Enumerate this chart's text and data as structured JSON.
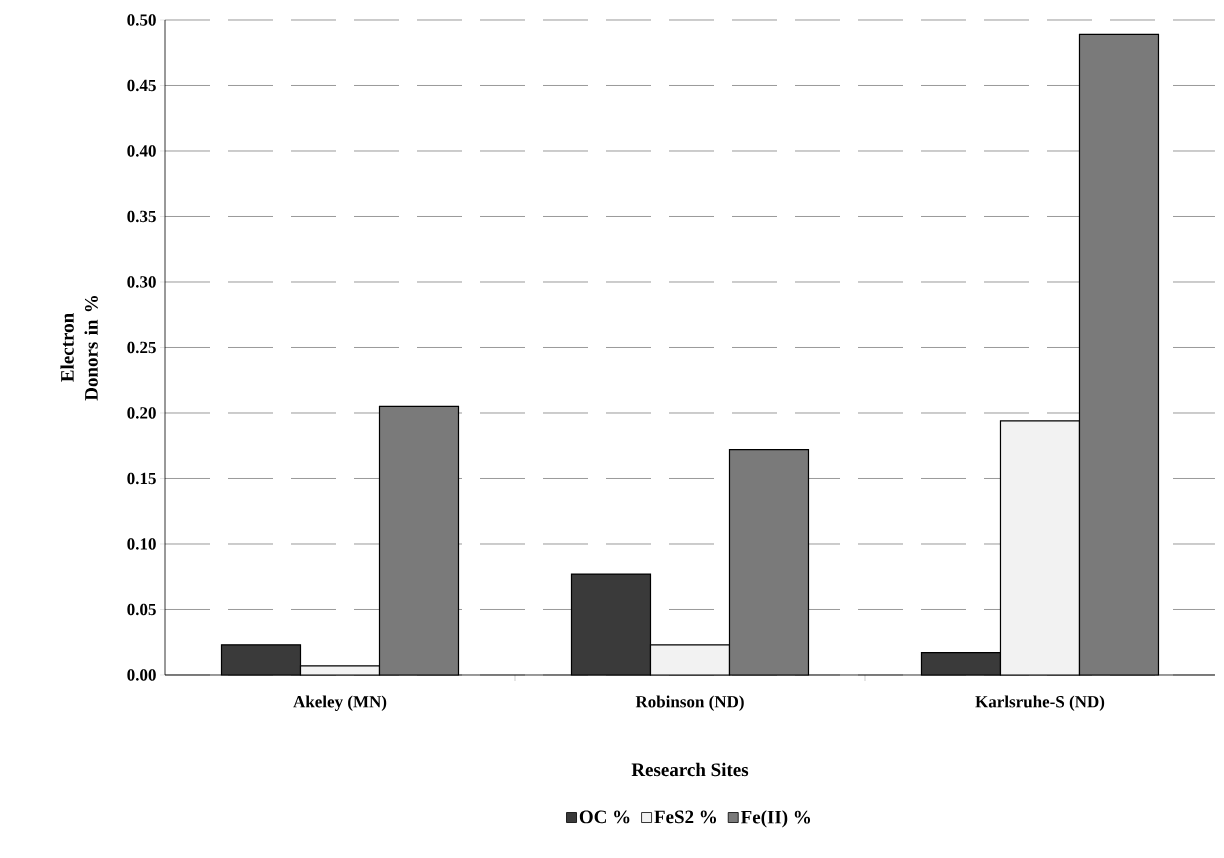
{
  "chart_data": {
    "type": "bar",
    "xlabel": "Research Sites",
    "ylabel": "Electron Donors in %",
    "categories": [
      "Akeley (MN)",
      "Robinson (ND)",
      "Karlsruhe-S (ND)"
    ],
    "series": [
      {
        "name": "OC %",
        "color": "#3a3a3a",
        "values": [
          0.023,
          0.077,
          0.017
        ]
      },
      {
        "name": "FeS2 %",
        "color": "#f2f2f2",
        "values": [
          0.007,
          0.023,
          0.194
        ]
      },
      {
        "name": "Fe(II) %",
        "color": "#7a7a7a",
        "values": [
          0.205,
          0.172,
          0.489
        ]
      }
    ],
    "ylim": [
      0,
      0.5
    ],
    "yticks": [
      {
        "value": 0,
        "label": "0.00"
      },
      {
        "value": 0.05,
        "label": "0.05"
      },
      {
        "value": 0.1,
        "label": "0.10"
      },
      {
        "value": 0.15,
        "label": "0.15"
      },
      {
        "value": 0.2,
        "label": "0.20"
      },
      {
        "value": 0.25,
        "label": "0.25"
      },
      {
        "value": 0.3,
        "label": "0.30"
      },
      {
        "value": 0.35,
        "label": "0.35"
      },
      {
        "value": 0.4,
        "label": "0.40"
      },
      {
        "value": 0.45,
        "label": "0.45"
      },
      {
        "value": 0.5,
        "label": "0.50"
      }
    ],
    "grid": "y",
    "legend": "bottom"
  }
}
